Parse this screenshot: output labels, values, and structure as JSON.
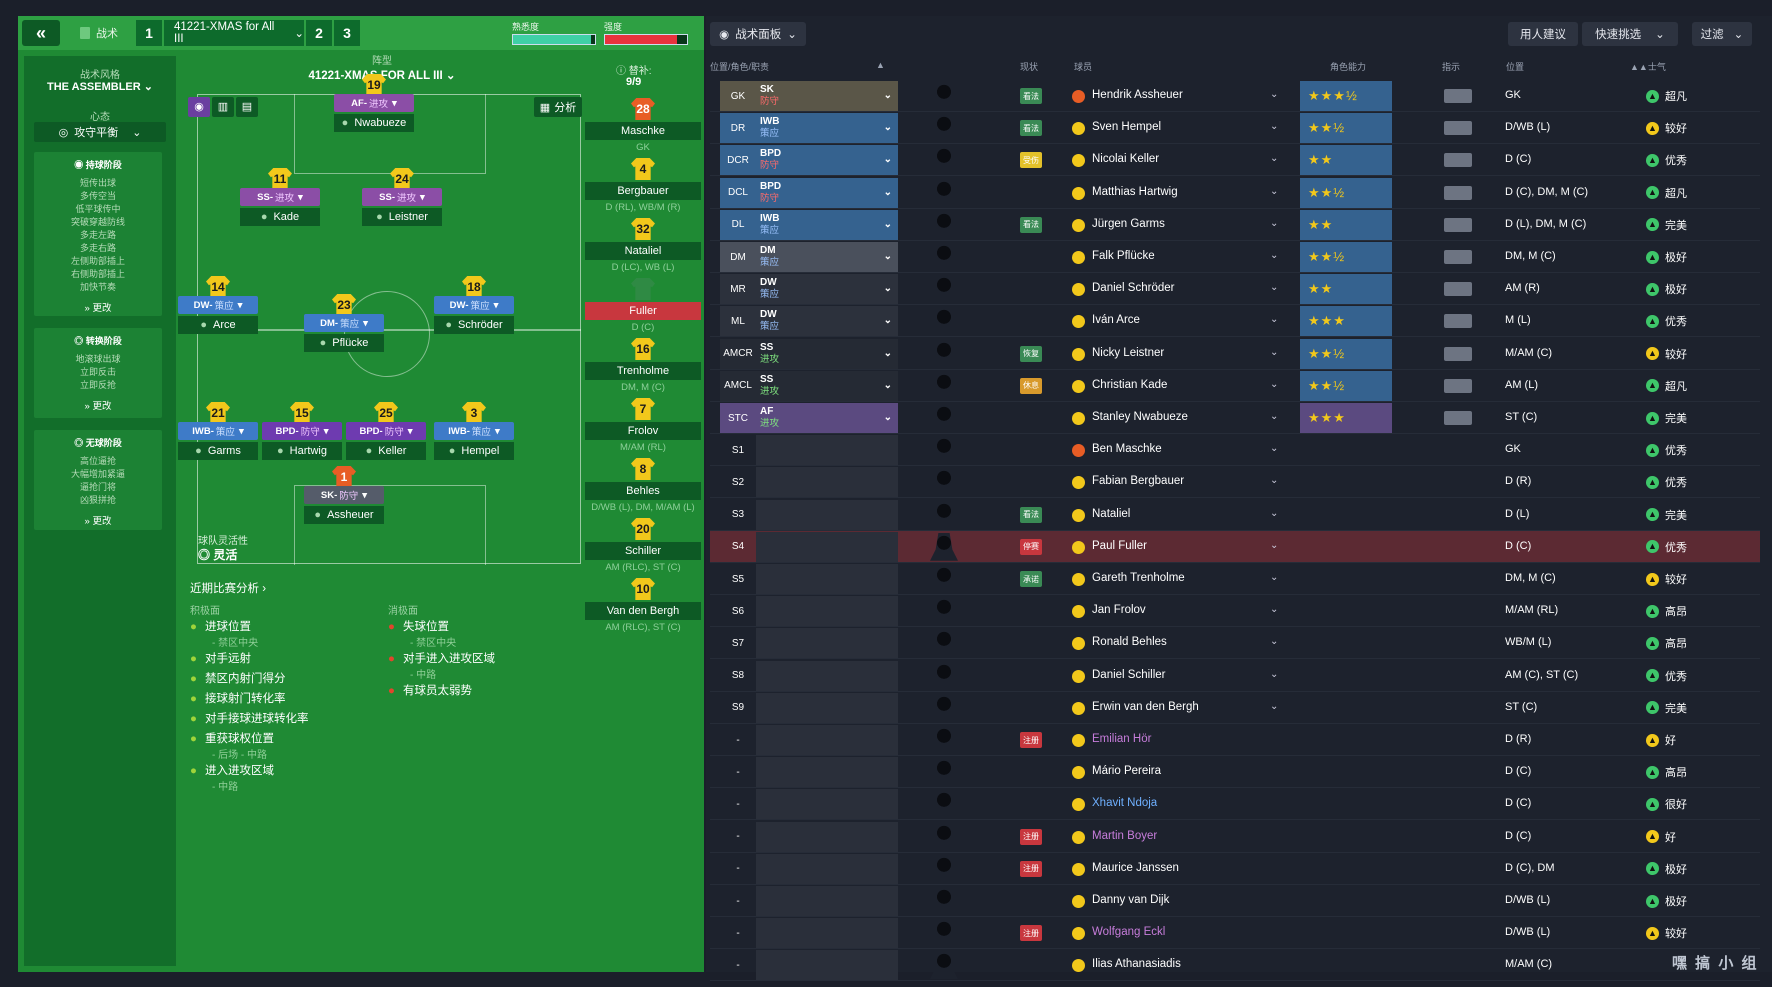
{
  "topbar": {
    "back_glyph": "«",
    "tactic_label": "战术",
    "slot1": "1",
    "tactic_name": "41221-XMAS for All III",
    "slot2": "2",
    "slot3": "3",
    "familiarity_label": "熟悉度",
    "familiarity": 0.95,
    "intensity_label": "强度",
    "intensity": 0.88
  },
  "style": {
    "label": "战术风格",
    "name": "THE ASSEMBLER",
    "mentality_label": "心态",
    "mentality": "攻守平衡",
    "inpos_title": "持球阶段",
    "inpos": [
      "短传出球",
      "多传空当",
      "低平球传中",
      "突破穿越防线",
      "多走左路",
      "多走右路",
      "左侧助部插上",
      "右侧助部插上",
      "加快节奏"
    ],
    "trans_title": "转换阶段",
    "trans": [
      "地滚球出球",
      "立即反击",
      "立即反抢"
    ],
    "outpos_title": "无球阶段",
    "outpos": [
      "高位逼抢",
      "大幅增加紧逼",
      "逼抢门将",
      "凶狠拼抢"
    ],
    "more": "» 更改"
  },
  "formation": {
    "label": "阵型",
    "name": "41221-XMAS FOR ALL III",
    "subs_label": "替补:",
    "subs": "9/9",
    "analysis": "分析",
    "fluidity_label": "球队灵活性",
    "fluidity": "灵活"
  },
  "players": [
    {
      "num": "19",
      "role": "AF",
      "duty": "进攻",
      "name": "Nwabueze"
    },
    {
      "num": "11",
      "role": "SS",
      "duty": "进攻",
      "name": "Kade"
    },
    {
      "num": "24",
      "role": "SS",
      "duty": "进攻",
      "name": "Leistner"
    },
    {
      "num": "14",
      "role": "DW",
      "duty": "策应",
      "name": "Arce"
    },
    {
      "num": "18",
      "role": "DW",
      "duty": "策应",
      "name": "Schröder"
    },
    {
      "num": "23",
      "role": "DM",
      "duty": "策应",
      "name": "Pflücke"
    },
    {
      "num": "21",
      "role": "IWB",
      "duty": "策应",
      "name": "Garms"
    },
    {
      "num": "15",
      "role": "BPD",
      "duty": "防守",
      "name": "Hartwig"
    },
    {
      "num": "25",
      "role": "BPD",
      "duty": "防守",
      "name": "Keller"
    },
    {
      "num": "3",
      "role": "IWB",
      "duty": "策应",
      "name": "Hempel"
    },
    {
      "num": "1",
      "role": "SK",
      "duty": "防守",
      "name": "Assheuer"
    }
  ],
  "subs": [
    {
      "num": "28",
      "name": "Maschke",
      "pos": "GK"
    },
    {
      "num": "4",
      "name": "Bergbauer",
      "pos": "D (RL), WB/M (R)"
    },
    {
      "num": "32",
      "name": "Nataliel",
      "pos": "D (LC), WB (L)"
    },
    {
      "num": "",
      "name": "Fuller",
      "pos": "D (C)"
    },
    {
      "num": "16",
      "name": "Trenholme",
      "pos": "DM, M (C)"
    },
    {
      "num": "7",
      "name": "Frolov",
      "pos": "M/AM (RL)"
    },
    {
      "num": "8",
      "name": "Behles",
      "pos": "D/WB (L), DM, M/AM (L)"
    },
    {
      "num": "20",
      "name": "Schiller",
      "pos": "AM (RLC), ST (C)"
    },
    {
      "num": "10",
      "name": "Van den Bergh",
      "pos": "AM (RLC), ST (C)"
    }
  ],
  "analysis": {
    "title": "近期比赛分析 ›",
    "pos_label": "积极面",
    "neg_label": "消极面",
    "pos": [
      [
        "进球位置",
        "- 禁区中央"
      ],
      [
        "对手远射",
        ""
      ],
      [
        "禁区内射门得分",
        ""
      ],
      [
        "接球射门转化率",
        ""
      ],
      [
        "对手接球进球转化率",
        ""
      ],
      [
        "重获球权位置",
        "- 后场 - 中路"
      ],
      [
        "进入进攻区域",
        "- 中路"
      ]
    ],
    "neg": [
      [
        "失球位置",
        "- 禁区中央"
      ],
      [
        "对手进入进攻区域",
        "- 中路"
      ],
      [
        "有球员太弱势",
        ""
      ]
    ]
  },
  "right": {
    "panel_btn": "战术面板",
    "advice_btn": "用人建议",
    "quick_btn": "快速挑选",
    "filter_btn": "过滤",
    "cols": {
      "posrole": "位置/角色/职责",
      "cond": "现状",
      "player": "球员",
      "ability": "角色能力",
      "instr": "指示",
      "position": "位置",
      "morale": "士气"
    },
    "rows": [
      {
        "pos": "GK",
        "role": "SK",
        "duty": "防守",
        "name": "Hendrik Assheuer",
        "stars": "★★★½",
        "status": "看法",
        "ppos": "GK",
        "morale": "超凡"
      },
      {
        "pos": "DR",
        "role": "IWB",
        "duty": "策应",
        "name": "Sven Hempel",
        "stars": "★★½",
        "status": "看法",
        "ppos": "D/WB (L)",
        "morale": "较好"
      },
      {
        "pos": "DCR",
        "role": "BPD",
        "duty": "防守",
        "name": "Nicolai Keller",
        "stars": "★★",
        "status": "受伤",
        "ppos": "D (C)",
        "morale": "优秀"
      },
      {
        "pos": "DCL",
        "role": "BPD",
        "duty": "防守",
        "name": "Matthias Hartwig",
        "stars": "★★½",
        "status": "",
        "ppos": "D (C), DM, M (C)",
        "morale": "超凡"
      },
      {
        "pos": "DL",
        "role": "IWB",
        "duty": "策应",
        "name": "Jürgen Garms",
        "stars": "★★",
        "status": "看法",
        "ppos": "D (L), DM, M (C)",
        "morale": "完美"
      },
      {
        "pos": "DM",
        "role": "DM",
        "duty": "策应",
        "name": "Falk Pflücke",
        "stars": "★★½",
        "status": "",
        "ppos": "DM, M (C)",
        "morale": "极好"
      },
      {
        "pos": "MR",
        "role": "DW",
        "duty": "策应",
        "name": "Daniel Schröder",
        "stars": "★★",
        "status": "",
        "ppos": "AM (R)",
        "morale": "极好"
      },
      {
        "pos": "ML",
        "role": "DW",
        "duty": "策应",
        "name": "Iván Arce",
        "stars": "★★★",
        "status": "",
        "ppos": "M (L)",
        "morale": "优秀"
      },
      {
        "pos": "AMCR",
        "role": "SS",
        "duty": "进攻",
        "name": "Nicky Leistner",
        "stars": "★★½",
        "status": "恢复",
        "ppos": "M/AM (C)",
        "morale": "较好"
      },
      {
        "pos": "AMCL",
        "role": "SS",
        "duty": "进攻",
        "name": "Christian Kade",
        "stars": "★★½",
        "status": "休息",
        "ppos": "AM (L)",
        "morale": "超凡"
      },
      {
        "pos": "STC",
        "role": "AF",
        "duty": "进攻",
        "name": "Stanley Nwabueze",
        "stars": "★★★",
        "status": "",
        "ppos": "ST (C)",
        "morale": "完美"
      },
      {
        "pos": "S1",
        "role": "",
        "duty": "",
        "name": "Ben Maschke",
        "stars": "",
        "status": "",
        "ppos": "GK",
        "morale": "优秀"
      },
      {
        "pos": "S2",
        "role": "",
        "duty": "",
        "name": "Fabian Bergbauer",
        "stars": "",
        "status": "",
        "ppos": "D (R)",
        "morale": "优秀"
      },
      {
        "pos": "S3",
        "role": "",
        "duty": "",
        "name": "Nataliel",
        "stars": "",
        "status": "看法",
        "ppos": "D (L)",
        "morale": "完美"
      },
      {
        "pos": "S4",
        "role": "",
        "duty": "",
        "name": "Paul Fuller",
        "stars": "",
        "status": "停赛",
        "ppos": "D (C)",
        "morale": "优秀"
      },
      {
        "pos": "S5",
        "role": "",
        "duty": "",
        "name": "Gareth Trenholme",
        "stars": "",
        "status": "承诺",
        "ppos": "DM, M (C)",
        "morale": "较好"
      },
      {
        "pos": "S6",
        "role": "",
        "duty": "",
        "name": "Jan Frolov",
        "stars": "",
        "status": "",
        "ppos": "M/AM (RL)",
        "morale": "高昂"
      },
      {
        "pos": "S7",
        "role": "",
        "duty": "",
        "name": "Ronald Behles",
        "stars": "",
        "status": "",
        "ppos": "WB/M (L)",
        "morale": "高昂"
      },
      {
        "pos": "S8",
        "role": "",
        "duty": "",
        "name": "Daniel Schiller",
        "stars": "",
        "status": "",
        "ppos": "AM (C), ST (C)",
        "morale": "优秀"
      },
      {
        "pos": "S9",
        "role": "",
        "duty": "",
        "name": "Erwin van den Bergh",
        "stars": "",
        "status": "",
        "ppos": "ST (C)",
        "morale": "完美"
      },
      {
        "pos": "-",
        "role": "",
        "duty": "",
        "name": "Emilian Hör",
        "stars": "",
        "status": "注册",
        "ppos": "D (R)",
        "morale": "好"
      },
      {
        "pos": "-",
        "role": "",
        "duty": "",
        "name": "Mário Pereira",
        "stars": "",
        "status": "",
        "ppos": "D (C)",
        "morale": "高昂"
      },
      {
        "pos": "-",
        "role": "",
        "duty": "",
        "name": "Xhavit Ndoja",
        "stars": "",
        "status": "",
        "ppos": "D (C)",
        "morale": "很好"
      },
      {
        "pos": "-",
        "role": "",
        "duty": "",
        "name": "Martin Boyer",
        "stars": "",
        "status": "注册",
        "ppos": "D (C)",
        "morale": "好"
      },
      {
        "pos": "-",
        "role": "",
        "duty": "",
        "name": "Maurice Janssen",
        "stars": "",
        "status": "注册",
        "ppos": "D (C), DM",
        "morale": "极好"
      },
      {
        "pos": "-",
        "role": "",
        "duty": "",
        "name": "Danny van Dijk",
        "stars": "",
        "status": "",
        "ppos": "D/WB (L)",
        "morale": "极好"
      },
      {
        "pos": "-",
        "role": "",
        "duty": "",
        "name": "Wolfgang Eckl",
        "stars": "",
        "status": "注册",
        "ppos": "D/WB (L)",
        "morale": "较好"
      },
      {
        "pos": "-",
        "role": "",
        "duty": "",
        "name": "Ilias Athanasiadis",
        "stars": "",
        "status": "",
        "ppos": "M/AM (C)",
        "morale": ""
      }
    ]
  },
  "watermark": "嘿 搞 小 组"
}
